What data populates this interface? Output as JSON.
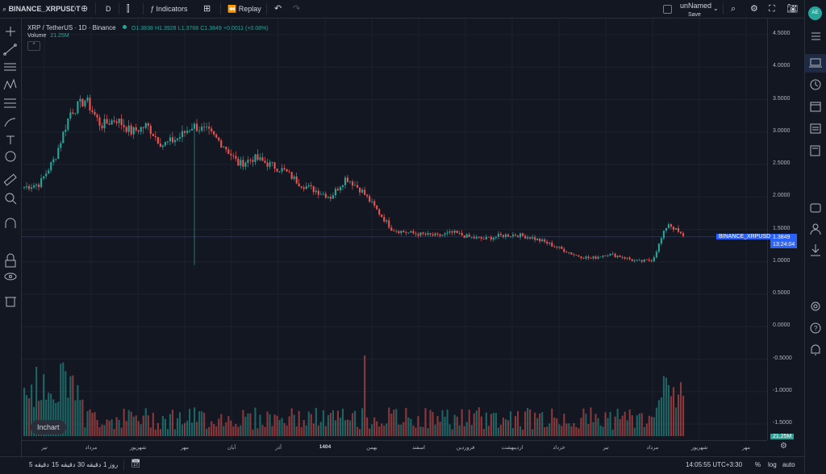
{
  "topbar": {
    "symbol": "BINANCE_XRPUSDT",
    "interval": "D",
    "indicators_label": "Indicators",
    "replay_label": "Replay",
    "layout_name": "unNamed",
    "save_label": "Save"
  },
  "avatar": {
    "initials": "AE",
    "color": "#26a69a"
  },
  "legend": {
    "title": "XRP / TetherUS · 1D · Binance",
    "open": "O1.3838",
    "high": "H1.3928",
    "low": "L1.3768",
    "close": "C1.3849",
    "change": "+0.0011 (+0.08%)",
    "volume_label": "Volume",
    "volume_value": "21.25M"
  },
  "price_axis": {
    "ticks": [
      "4.5000",
      "4.0000",
      "3.5000",
      "3.0000",
      "2.5000",
      "2.0000",
      "1.5000",
      "1.0000",
      "0.5000",
      "0.0000",
      "-0.5000",
      "-1.0000",
      "-1.5000"
    ],
    "tick_values": [
      4.5,
      4.0,
      3.5,
      3.0,
      2.5,
      2.0,
      1.5,
      1.0,
      0.5,
      0.0,
      -0.5,
      -1.0,
      -1.5
    ],
    "last_price": "1.3849",
    "countdown": "13:24:04",
    "symbol_tag": "BINANCE_XRPUSDT",
    "volume_tag": "21.25M"
  },
  "time_axis": {
    "labels": [
      "تیر",
      "مرداد",
      "شهریور",
      "مهر",
      "آبان",
      "آذر",
      "1404",
      "بهمن",
      "اسفند",
      "فروردین",
      "اردیبهشت",
      "خرداد",
      "تیر",
      "مرداد",
      "شهریور",
      "مهر"
    ]
  },
  "incharts_label": "Inchart",
  "bottombar": {
    "ranges": [
      "5 دقیقه",
      "15 دقیقه",
      "30 دقیقه",
      "1 روز"
    ],
    "time": "14:05:55 UTC+3:30",
    "percent_label": "%",
    "log_label": "log",
    "auto_label": "auto"
  },
  "colors": {
    "up": "#26a69a",
    "down": "#ef5350",
    "background": "#131722",
    "accent": "#2962ff"
  },
  "chart_data": {
    "type": "candlestick",
    "series": [
      {
        "name": "XRP / TetherUS",
        "close": [
          2.15,
          2.2,
          2.6,
          3.3,
          3.5,
          3.1,
          3.2,
          3.0,
          3.1,
          2.8,
          2.9,
          3.1,
          3.0,
          2.8,
          2.5,
          2.6,
          2.5,
          2.4,
          2.2,
          2.1,
          2.0,
          2.3,
          2.1,
          1.8,
          1.5,
          1.45,
          1.42,
          1.4,
          1.45,
          1.38,
          1.35,
          1.4,
          1.42,
          1.38,
          1.3,
          1.2,
          1.1,
          1.05,
          1.12,
          1.08,
          1.0,
          1.03,
          1.6,
          1.3849
        ]
      }
    ],
    "volume": [
      {
        "name": "Volume",
        "last": "21.25M"
      }
    ],
    "ylim": [
      -1.6,
      4.6
    ]
  }
}
